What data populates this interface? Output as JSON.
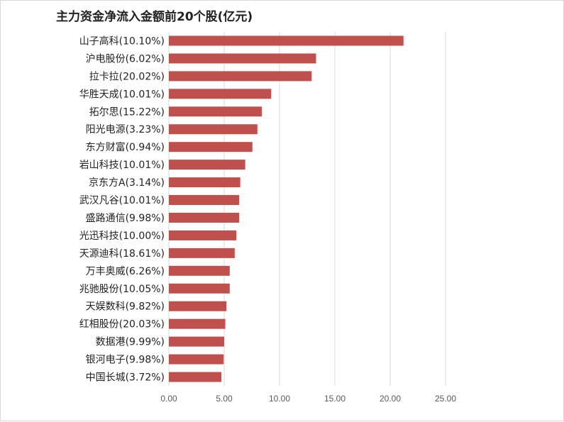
{
  "chart_data": {
    "type": "bar",
    "orientation": "horizontal",
    "title": "主力资金净流入金额前20个股(亿元)",
    "xlabel": "",
    "ylabel": "",
    "categories": [
      "山子高科(10.10%)",
      "沪电股份(6.02%)",
      "拉卡拉(20.02%)",
      "华胜天成(10.01%)",
      "拓尔思(15.22%)",
      "阳光电源(3.23%)",
      "东方财富(0.94%)",
      "岩山科技(10.01%)",
      "京东方A(3.14%)",
      "武汉凡谷(10.01%)",
      "盛路通信(9.98%)",
      "光迅科技(10.00%)",
      "天源迪科(18.61%)",
      "万丰奥威(6.26%)",
      "兆驰股份(10.05%)",
      "天娱数科(9.82%)",
      "红相股份(20.03%)",
      "数据港(9.99%)",
      "银河电子(9.98%)",
      "中国长城(3.72%)"
    ],
    "values": [
      21.2,
      13.3,
      12.9,
      9.25,
      8.4,
      8.0,
      7.55,
      6.9,
      6.45,
      6.35,
      6.35,
      6.1,
      5.95,
      5.5,
      5.5,
      5.2,
      5.1,
      5.0,
      4.95,
      4.75
    ],
    "xlim": [
      0,
      25
    ],
    "xticks": [
      "0.00",
      "5.00",
      "10.00",
      "15.00",
      "20.00",
      "25.00"
    ],
    "grid": true,
    "legend": "none",
    "bar_color": "#C0504D",
    "grid_color": "#d9d9d9"
  }
}
